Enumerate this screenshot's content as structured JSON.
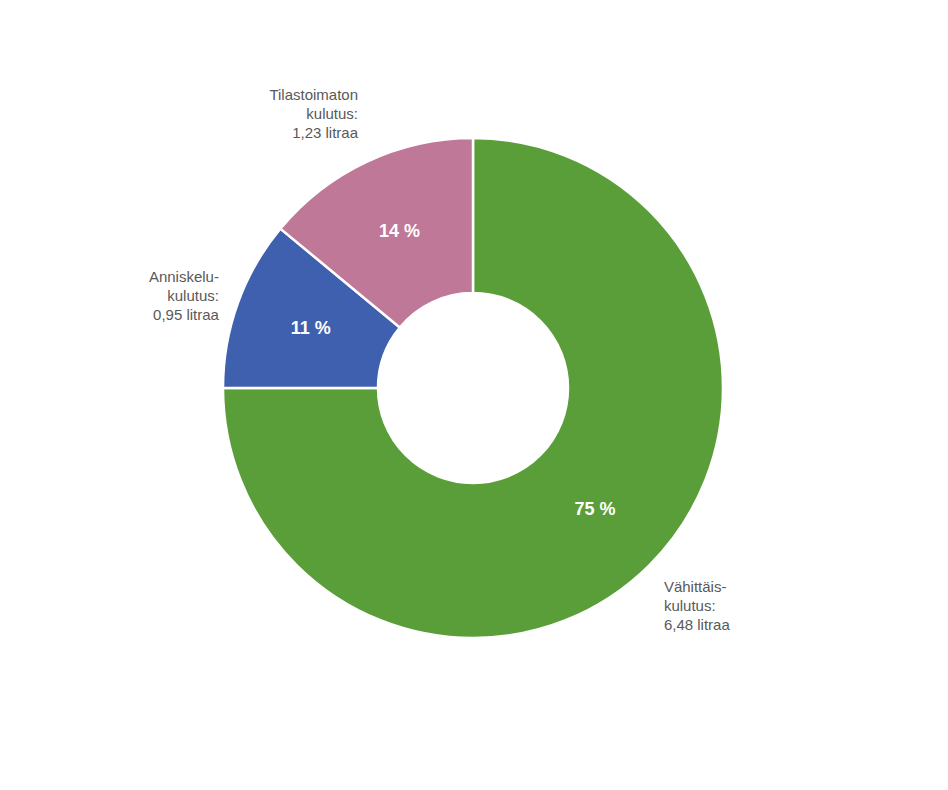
{
  "chart_data": {
    "type": "pie",
    "categories": [
      "Vähittäis-\nkulutus:\n6,48 litraa",
      "Anniskelu-\nkulutus:\n0,95 litraa",
      "Tilastoimaton\nkulutus:\n1,23 litraa"
    ],
    "values": [
      75,
      11,
      14
    ],
    "value_labels": [
      "75 %",
      "11 %",
      "14 %"
    ],
    "colors": [
      "#5a9e3a",
      "#3f60ae",
      "#c07898"
    ],
    "data_labels": true
  }
}
